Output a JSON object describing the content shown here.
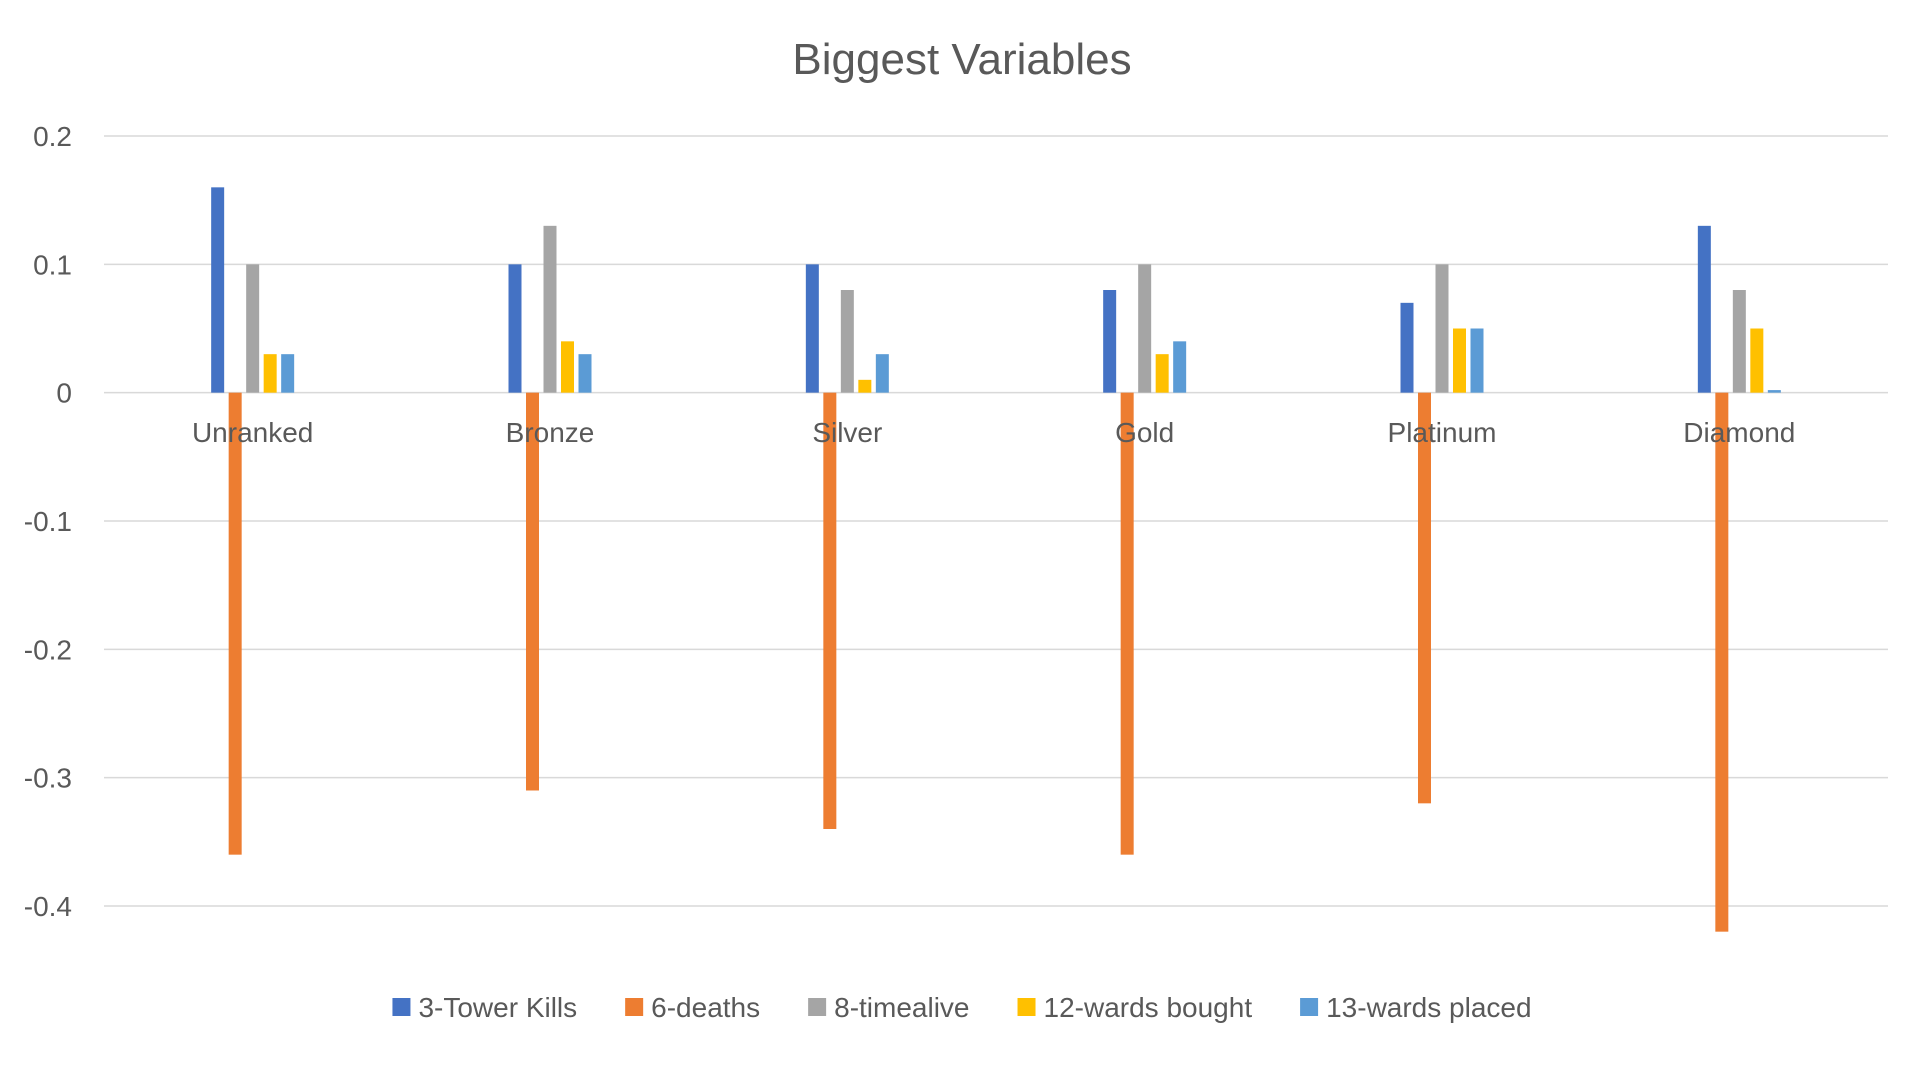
{
  "chart_data": {
    "type": "bar",
    "title": "Biggest Variables",
    "xlabel": "",
    "ylabel": "",
    "categories": [
      "Unranked",
      "Bronze",
      "Silver",
      "Gold",
      "Platinum",
      "Diamond"
    ],
    "series": [
      {
        "name": "3-Tower Kills",
        "color": "#4472c4",
        "values": [
          0.16,
          0.1,
          0.1,
          0.08,
          0.07,
          0.13
        ]
      },
      {
        "name": "6-deaths",
        "color": "#ed7d31",
        "values": [
          -0.36,
          -0.31,
          -0.34,
          -0.36,
          -0.32,
          -0.42
        ]
      },
      {
        "name": "8-timealive",
        "color": "#a5a5a5",
        "values": [
          0.1,
          0.13,
          0.08,
          0.1,
          0.1,
          0.08
        ]
      },
      {
        "name": "12-wards bought",
        "color": "#ffc000",
        "values": [
          0.03,
          0.04,
          0.01,
          0.03,
          0.05,
          0.05
        ]
      },
      {
        "name": "13-wards placed",
        "color": "#5b9bd5",
        "values": [
          0.03,
          0.03,
          0.03,
          0.04,
          0.05,
          0.002
        ]
      }
    ],
    "ylim": [
      -0.4,
      0.2
    ],
    "yticks": [
      0.2,
      0.1,
      0,
      -0.1,
      -0.2,
      -0.3,
      -0.4
    ],
    "ytick_labels": [
      "0.2",
      "0.1",
      "0",
      "-0.1",
      "-0.2",
      "-0.3",
      "-0.4"
    ],
    "grid": true,
    "legend_position": "bottom"
  }
}
